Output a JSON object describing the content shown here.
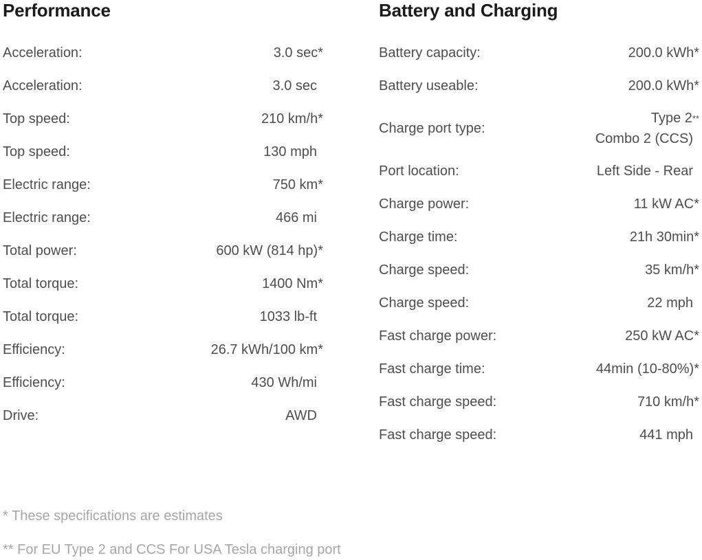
{
  "performance": {
    "title": "Performance",
    "rows": [
      {
        "label": "Acceleration:",
        "value": "3.0 sec*"
      },
      {
        "label": "Acceleration:",
        "value": "3.0 sec"
      },
      {
        "label": "Top speed:",
        "value": "210 km/h*"
      },
      {
        "label": "Top speed:",
        "value": "130 mph"
      },
      {
        "label": "Electric range:",
        "value": "750 km*"
      },
      {
        "label": "Electric range:",
        "value": "466 mi"
      },
      {
        "label": "Total power:",
        "value": "600 kW (814 hp)*"
      },
      {
        "label": "Total torque:",
        "value": "1400 Nm*"
      },
      {
        "label": "Total torque:",
        "value": "1033 lb-ft"
      },
      {
        "label": "Efficiency:",
        "value": "26.7 kWh/100 km*"
      },
      {
        "label": "Efficiency:",
        "value": "430 Wh/mi"
      },
      {
        "label": "Drive:",
        "value": "AWD"
      }
    ]
  },
  "battery": {
    "title": "Battery and Charging",
    "rows": [
      {
        "label": "Battery capacity:",
        "value": "200.0 kWh*"
      },
      {
        "label": "Battery useable:",
        "value": "200.0 kWh*"
      },
      {
        "label": "Charge port type:",
        "value_line1": "Type 2",
        "value_line1_mark": "**",
        "value_line2": "Combo 2 (CCS)"
      },
      {
        "label": "Port location:",
        "value": "Left Side - Rear"
      },
      {
        "label": "Charge power:",
        "value": "11 kW AC*"
      },
      {
        "label": "Charge time:",
        "value": "21h 30min*"
      },
      {
        "label": "Charge speed:",
        "value": "35 km/h*"
      },
      {
        "label": "Charge speed:",
        "value": "22 mph"
      },
      {
        "label": "Fast charge power:",
        "value": "250 kW AC*"
      },
      {
        "label": "Fast charge time:",
        "value": "44min (10-80%)*"
      },
      {
        "label": "Fast charge speed:",
        "value": "710 km/h*"
      },
      {
        "label": "Fast charge speed:",
        "value": "441 mph"
      }
    ]
  },
  "footnotes": {
    "estimates": "* These specifications are estimates",
    "ports": "** For EU Type 2 and CCS For USA Tesla charging port"
  }
}
